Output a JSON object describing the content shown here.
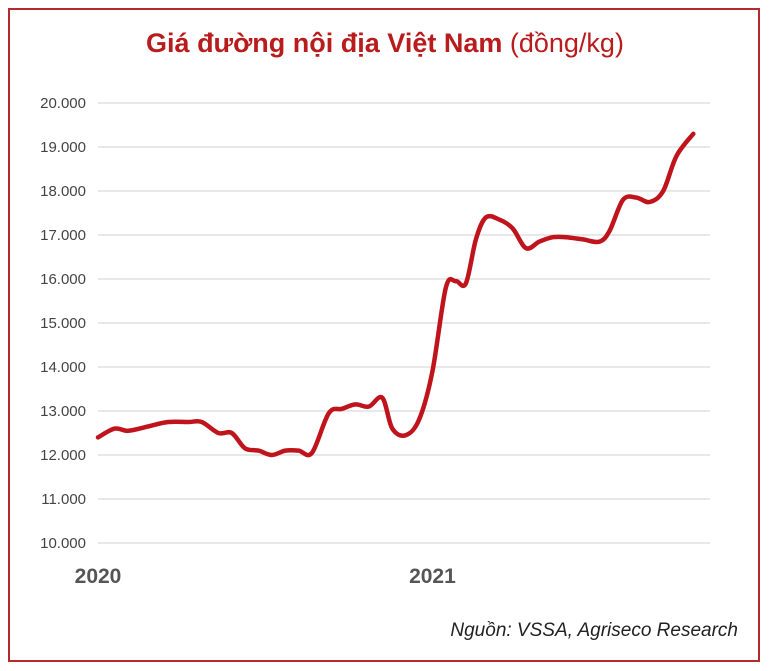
{
  "chart_data": {
    "type": "line",
    "title": "Giá đường nội địa Việt Nam",
    "title_unit": "(đồng/kg)",
    "ylim": [
      10000,
      20000
    ],
    "yticks": [
      {
        "value": 10000,
        "label": "10.000"
      },
      {
        "value": 11000,
        "label": "11.000"
      },
      {
        "value": 12000,
        "label": "12.000"
      },
      {
        "value": 13000,
        "label": "13.000"
      },
      {
        "value": 14000,
        "label": "14.000"
      },
      {
        "value": 15000,
        "label": "15.000"
      },
      {
        "value": 16000,
        "label": "16.000"
      },
      {
        "value": 17000,
        "label": "17.000"
      },
      {
        "value": 18000,
        "label": "18.000"
      },
      {
        "value": 19000,
        "label": "19.000"
      },
      {
        "value": 20000,
        "label": "20.000"
      }
    ],
    "xlim": [
      2020.0,
      2021.83
    ],
    "xticks": [
      {
        "value": 2020.0,
        "label": "2020"
      },
      {
        "value": 2021.0,
        "label": "2021"
      }
    ],
    "grid": true,
    "color": "#c0141c",
    "series": [
      {
        "x": [
          2020.0,
          2020.05,
          2020.09,
          2020.15,
          2020.21,
          2020.27,
          2020.31,
          2020.36,
          2020.4,
          2020.44,
          2020.48,
          2020.52,
          2020.56,
          2020.6,
          2020.64,
          2020.69,
          2020.73,
          2020.77,
          2020.81,
          2020.85,
          2020.88,
          2020.92,
          2020.96,
          2021.0,
          2021.04,
          2021.07,
          2021.1,
          2021.13,
          2021.16,
          2021.2,
          2021.24,
          2021.28,
          2021.32,
          2021.36,
          2021.4,
          2021.45,
          2021.5,
          2021.53,
          2021.57,
          2021.61,
          2021.65,
          2021.69,
          2021.73,
          2021.78
        ],
        "y": [
          12400,
          12600,
          12550,
          12650,
          12750,
          12750,
          12750,
          12500,
          12500,
          12150,
          12100,
          12000,
          12100,
          12100,
          12050,
          12950,
          13050,
          13150,
          13100,
          13300,
          12600,
          12450,
          12800,
          13900,
          15800,
          15950,
          15900,
          16900,
          17400,
          17350,
          17150,
          16700,
          16850,
          16950,
          16950,
          16900,
          16850,
          17100,
          17800,
          17850,
          17750,
          18000,
          18800,
          19300
        ]
      }
    ]
  },
  "source": "Nguồn: VSSA, Agriseco Research"
}
